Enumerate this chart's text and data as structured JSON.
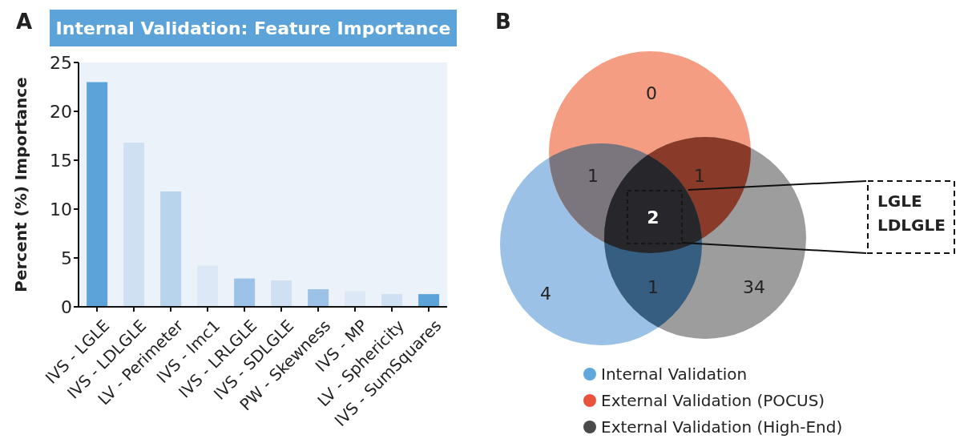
{
  "chart_data": [
    {
      "type": "bar",
      "title": "Internal Validation: Feature Importance",
      "ylabel": "Percent (%) Importance",
      "annotations": [
        "A"
      ],
      "categories": [
        "IVS - LGLE",
        "IVS - LDLGLE",
        "LV - Perimeter",
        "IVS - Imc1",
        "IVS - LRLGLE",
        "IVS - SDLGLE",
        "PW - Skewness",
        "IVS - MP",
        "LV - Sphericity",
        "IVS - SumSquares"
      ],
      "values": [
        23.0,
        16.8,
        11.8,
        4.2,
        2.9,
        2.7,
        1.8,
        1.6,
        1.3,
        1.3
      ],
      "colors": [
        "#5ba3d9",
        "#cfe0f2",
        "#b8d3ec",
        "#dce8f6",
        "#9cc2e7",
        "#cfe0f2",
        "#9cc2e7",
        "#dce8f6",
        "#cfe0f2",
        "#5ba3d9"
      ],
      "ylim": [
        0,
        25
      ],
      "yticks": [
        0,
        5,
        10,
        15,
        20,
        25
      ],
      "grid": false,
      "legend": false
    },
    {
      "type": "other",
      "annotations": [
        "B",
        "LGLE",
        "LDLGLE",
        "4",
        "0",
        "34",
        "1",
        "1",
        "1",
        "2"
      ],
      "series": [
        {
          "name": "Internal Validation",
          "color": "#5fa8dd"
        },
        {
          "name": "External Validation (POCUS)",
          "color": "#e8533f"
        },
        {
          "name": "External Validation (High-End)",
          "color": "#4a4a4a"
        }
      ],
      "colors": [
        "#9cc1e6",
        "#f59d83",
        "#9d9d9d",
        "#7b767e",
        "#8a3a28",
        "#355e80",
        "#27272b"
      ],
      "legend": "bottom"
    }
  ]
}
